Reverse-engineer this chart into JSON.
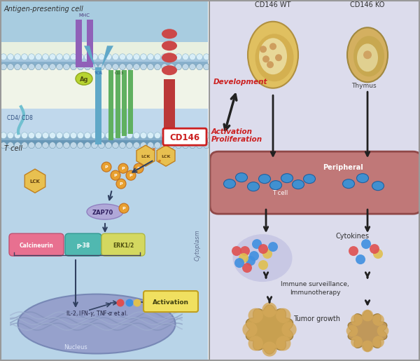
{
  "figure_width": 6.0,
  "figure_height": 5.15,
  "dpi": 100,
  "left_panel": {
    "antigen_presenting_label": "Antigen-presenting cell",
    "t_cell_label": "T cell",
    "cytoplasm_label": "Cytoplasm",
    "nucleus_label": "Nucleus",
    "cd146_label_color": "#cc2020"
  },
  "right_panel": {
    "bg_color": "#dcdcec",
    "labels": {
      "cd146_wt": "CD146 WT",
      "cd146_ko": "CD146 KO",
      "thymus": "Thymus",
      "peripheral": "Peripheral",
      "t_cell": "T cell",
      "cytokines": "Cytokines",
      "immune": "Immune surveillance,",
      "immunotherapy": "Immunotherapy",
      "tumor": "Tumor growth",
      "development": "Development",
      "activation": "Activation\nProliferation"
    }
  }
}
